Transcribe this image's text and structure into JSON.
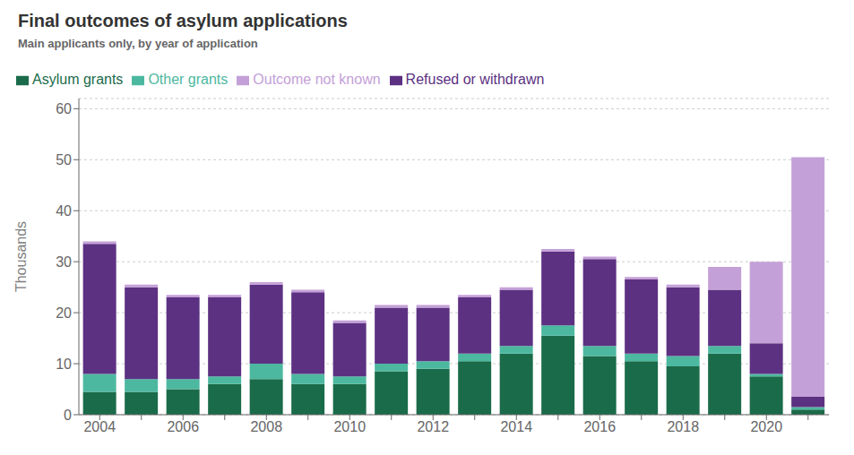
{
  "chart_data": {
    "type": "bar",
    "title": "Final outcomes of asylum applications",
    "subtitle": "Main applicants only, by year of application",
    "ylabel": "Thousands",
    "categories": [
      "2004",
      null,
      "2006",
      null,
      "2008",
      null,
      "2010",
      null,
      "2012",
      null,
      "2014",
      null,
      "2016",
      null,
      "2018",
      null,
      "2020",
      null
    ],
    "series": [
      {
        "name": "Asylum grants",
        "color": "#1a6b4a",
        "values": [
          4.5,
          4.5,
          5.0,
          6.0,
          7.0,
          6.0,
          6.0,
          8.5,
          9.0,
          10.5,
          12.0,
          15.5,
          11.5,
          10.5,
          9.5,
          12.0,
          7.5,
          1.0
        ]
      },
      {
        "name": "Other grants",
        "color": "#4db8a0",
        "values": [
          3.5,
          2.5,
          2.0,
          1.5,
          3.0,
          2.0,
          1.5,
          1.5,
          1.5,
          1.5,
          1.5,
          2.0,
          2.0,
          1.5,
          2.0,
          1.5,
          0.5,
          0.5
        ]
      },
      {
        "name": "Refused or withdrawn",
        "color": "#5c3182",
        "values": [
          25.5,
          18.0,
          16.0,
          15.5,
          15.5,
          16.0,
          10.5,
          11.0,
          10.5,
          11.0,
          11.0,
          14.5,
          17.0,
          14.5,
          13.5,
          11.0,
          6.0,
          2.0
        ]
      },
      {
        "name": "Outcome not known",
        "color": "#c4a0d8",
        "values": [
          0.5,
          0.5,
          0.5,
          0.5,
          0.5,
          0.5,
          0.5,
          0.5,
          0.5,
          0.5,
          0.5,
          0.5,
          0.5,
          0.5,
          0.5,
          4.5,
          16.0,
          47.0
        ]
      }
    ],
    "ylim": [
      0,
      62
    ],
    "yticks": [
      0,
      10,
      20,
      30,
      40,
      50,
      60
    ],
    "stacked": true,
    "grid": true,
    "legend": "top"
  }
}
